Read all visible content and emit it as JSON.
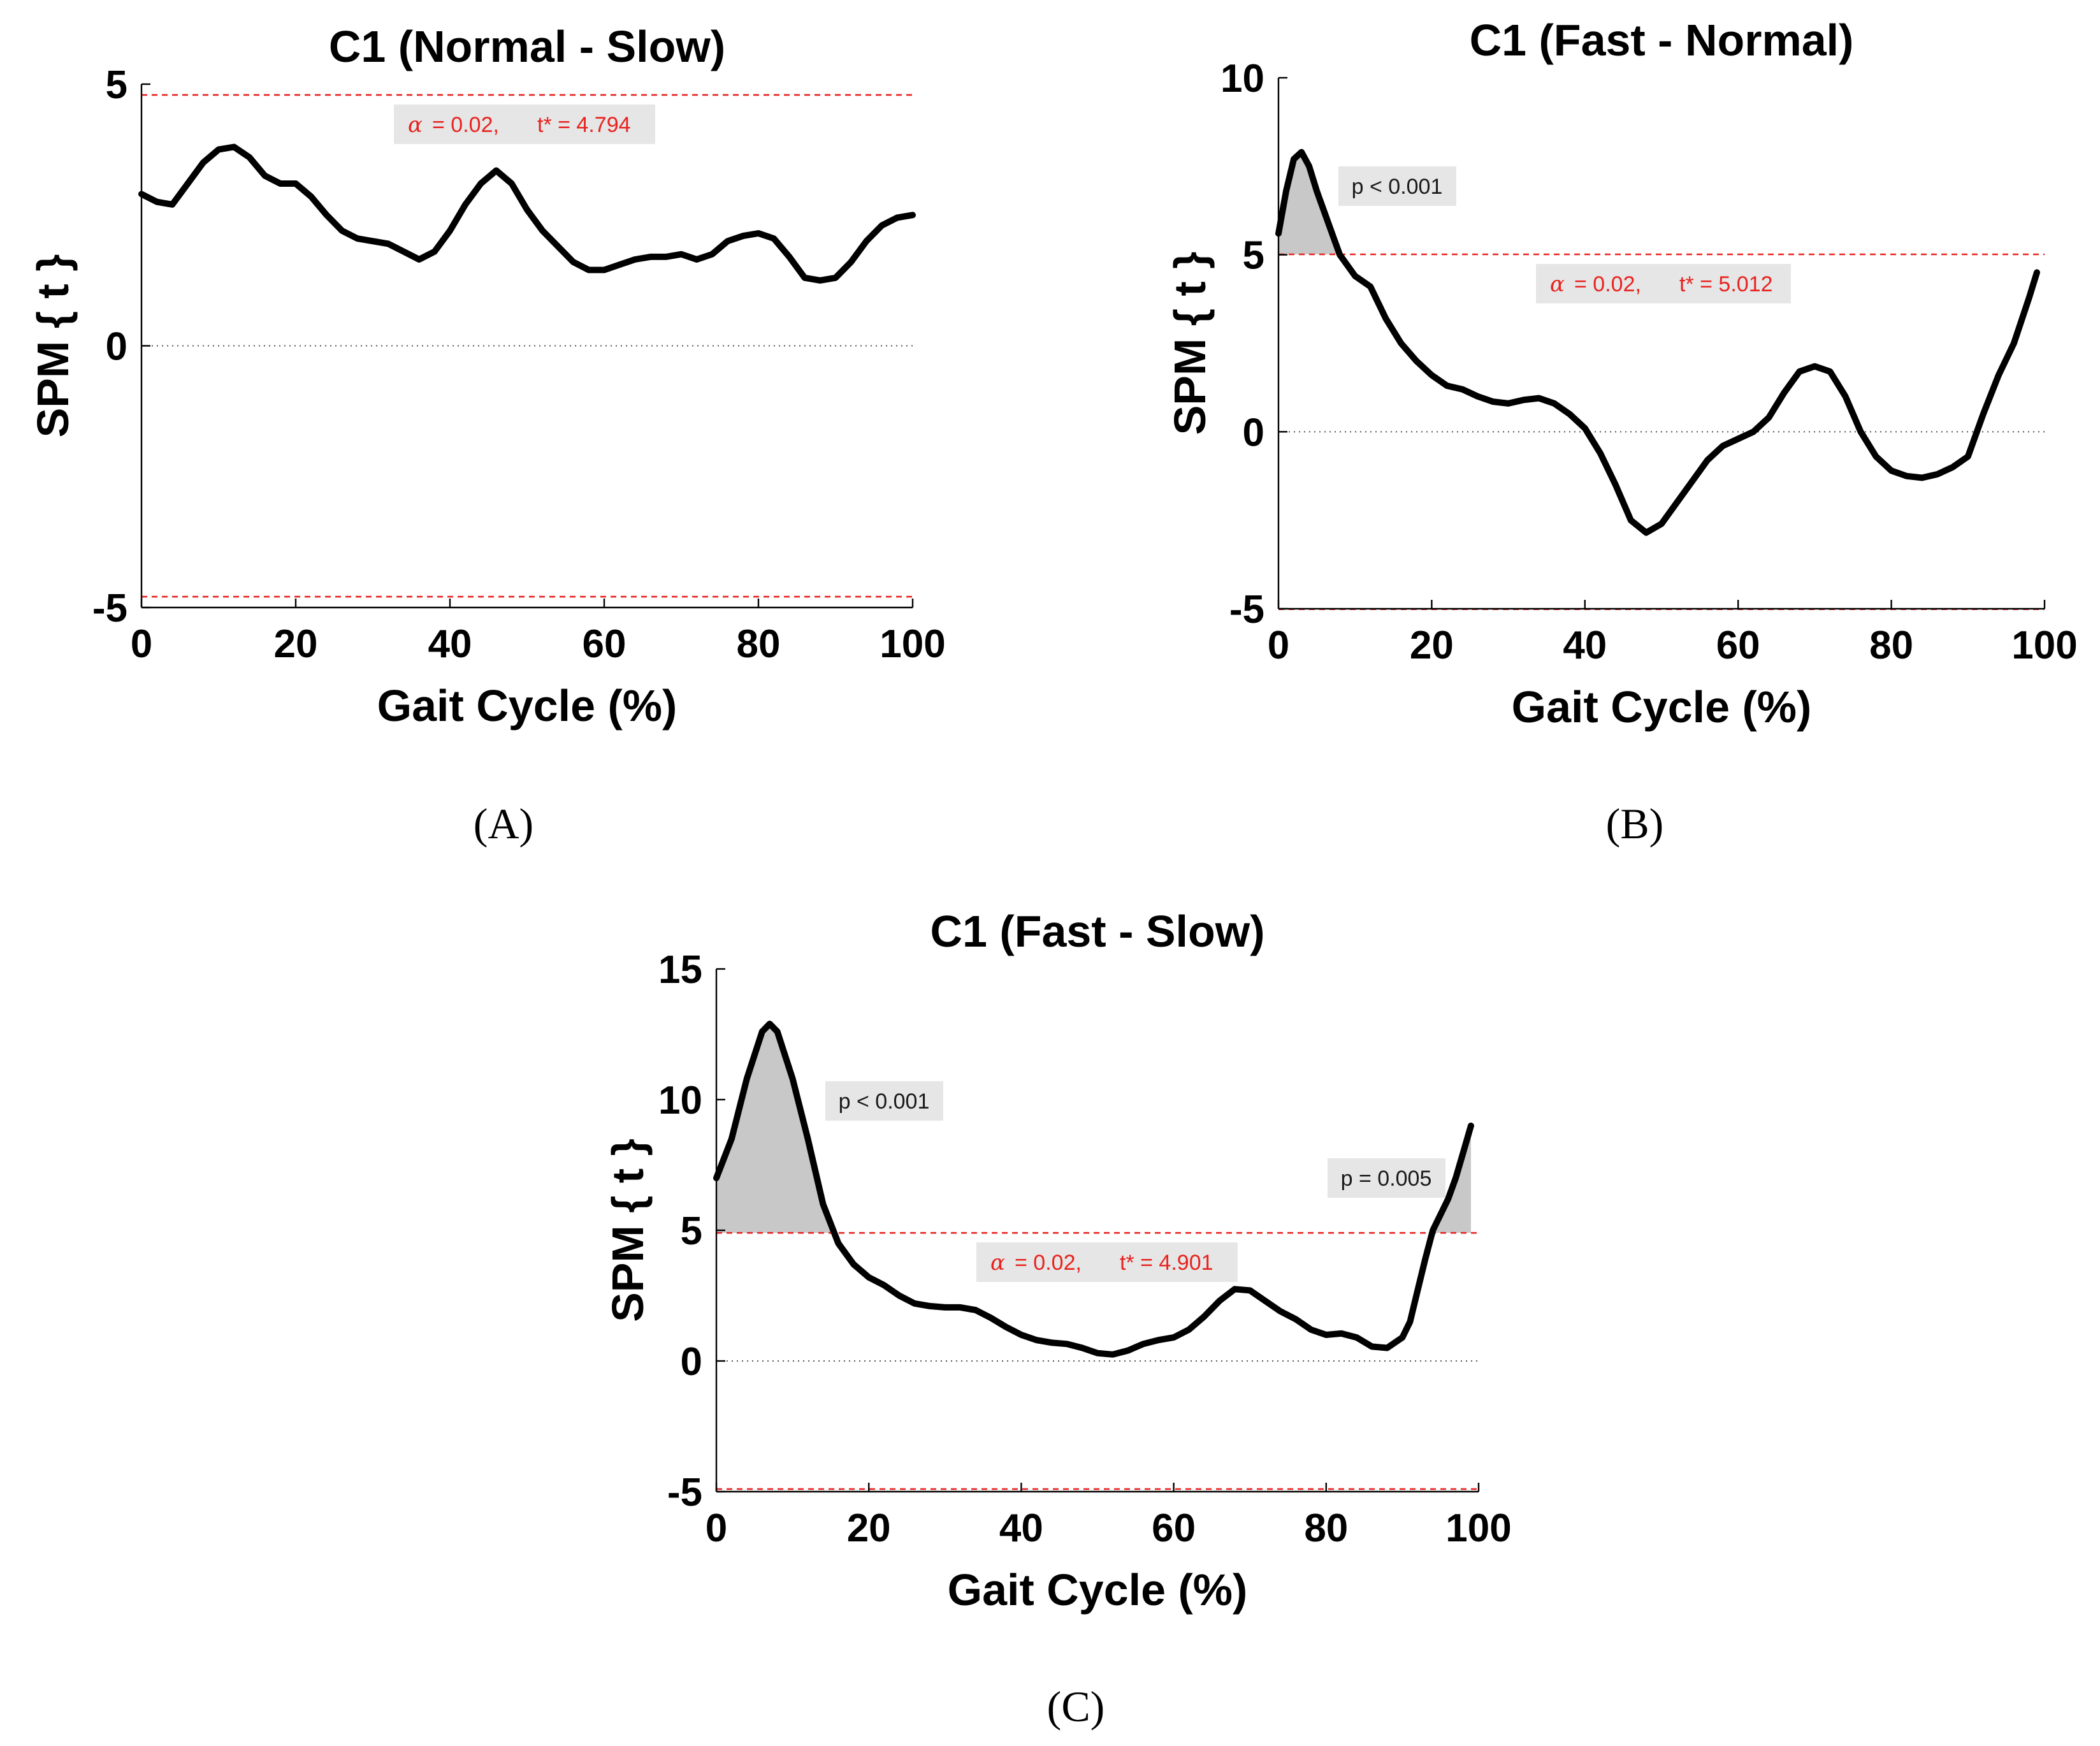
{
  "figure": {
    "panel_labels": [
      "(A)",
      "(B)",
      "(C)"
    ]
  },
  "chart_data": [
    {
      "type": "line",
      "panel": "(A)",
      "title": "C1 (Normal - Slow)",
      "xlabel": "Gait Cycle (%)",
      "ylabel": "SPM { t }",
      "xlim": [
        0,
        100
      ],
      "ylim": [
        -5,
        5
      ],
      "xticks": [
        0,
        20,
        40,
        60,
        80,
        100
      ],
      "yticks": [
        -5,
        0,
        5
      ],
      "threshold": 4.794,
      "threshold_label": "t* = 4.794",
      "alpha_symbol": "α",
      "alpha_label": "= 0.02,",
      "clusters": [],
      "series": [
        {
          "x": [
            0,
            2,
            4,
            6,
            8,
            10,
            12,
            14,
            16,
            18,
            20,
            22,
            24,
            26,
            28,
            30,
            32,
            34,
            36,
            38,
            40,
            42,
            44,
            46,
            48,
            50,
            52,
            54,
            56,
            58,
            60,
            62,
            64,
            66,
            68,
            70,
            72,
            74,
            76,
            78,
            80,
            82,
            84,
            86,
            88,
            90,
            92,
            94,
            96,
            98,
            100
          ],
          "values": [
            2.9,
            2.75,
            2.7,
            3.1,
            3.5,
            3.75,
            3.8,
            3.6,
            3.25,
            3.1,
            3.1,
            2.85,
            2.5,
            2.2,
            2.05,
            2.0,
            1.95,
            1.8,
            1.65,
            1.8,
            2.2,
            2.7,
            3.1,
            3.35,
            3.1,
            2.6,
            2.2,
            1.9,
            1.6,
            1.45,
            1.45,
            1.55,
            1.65,
            1.7,
            1.7,
            1.75,
            1.65,
            1.75,
            2.0,
            2.1,
            2.15,
            2.05,
            1.7,
            1.3,
            1.25,
            1.3,
            1.6,
            2.0,
            2.3,
            2.45,
            2.5
          ]
        }
      ]
    },
    {
      "type": "line",
      "panel": "(B)",
      "title": "C1 (Fast - Normal)",
      "xlabel": "Gait Cycle (%)",
      "ylabel": "SPM { t }",
      "xlim": [
        0,
        100
      ],
      "ylim": [
        -5,
        10
      ],
      "xticks": [
        0,
        20,
        40,
        60,
        80,
        100
      ],
      "yticks": [
        -5,
        0,
        5,
        10
      ],
      "threshold": 5.012,
      "threshold_label": "t* = 5.012",
      "alpha_symbol": "α",
      "alpha_label": "= 0.02,",
      "clusters": [
        {
          "p_label": "p < 0.001"
        }
      ],
      "series": [
        {
          "x": [
            0,
            1,
            2,
            3,
            4,
            5,
            6,
            7,
            8,
            10,
            12,
            14,
            16,
            18,
            20,
            22,
            24,
            26,
            28,
            30,
            32,
            34,
            36,
            38,
            40,
            42,
            44,
            46,
            48,
            50,
            52,
            54,
            56,
            58,
            60,
            62,
            64,
            66,
            68,
            70,
            72,
            74,
            76,
            78,
            80,
            82,
            84,
            86,
            88,
            90,
            92,
            94,
            96,
            98,
            99
          ],
          "values": [
            5.6,
            6.8,
            7.7,
            7.9,
            7.5,
            6.8,
            6.2,
            5.6,
            5.0,
            4.4,
            4.1,
            3.2,
            2.5,
            2.0,
            1.6,
            1.3,
            1.2,
            1.0,
            0.85,
            0.8,
            0.9,
            0.95,
            0.8,
            0.5,
            0.1,
            -0.6,
            -1.5,
            -2.5,
            -2.85,
            -2.6,
            -2.0,
            -1.4,
            -0.8,
            -0.4,
            -0.2,
            0.0,
            0.4,
            1.1,
            1.7,
            1.85,
            1.7,
            1.0,
            0.0,
            -0.7,
            -1.1,
            -1.25,
            -1.3,
            -1.2,
            -1.0,
            -0.7,
            0.5,
            1.6,
            2.5,
            3.8,
            4.5
          ]
        }
      ]
    },
    {
      "type": "line",
      "panel": "(C)",
      "title": "C1 (Fast - Slow)",
      "xlabel": "Gait Cycle (%)",
      "ylabel": "SPM { t }",
      "xlim": [
        0,
        100
      ],
      "ylim": [
        -5,
        15
      ],
      "xticks": [
        0,
        20,
        40,
        60,
        80,
        100
      ],
      "yticks": [
        -5,
        0,
        5,
        10,
        15
      ],
      "threshold": 4.901,
      "threshold_label": "t* = 4.901",
      "alpha_symbol": "α",
      "alpha_label": "= 0.02,",
      "clusters": [
        {
          "p_label": "p < 0.001"
        },
        {
          "p_label": "p = 0.005"
        }
      ],
      "series": [
        {
          "x": [
            0,
            2,
            4,
            6,
            7,
            8,
            10,
            12,
            14,
            16,
            18,
            20,
            22,
            24,
            26,
            28,
            30,
            32,
            34,
            36,
            38,
            40,
            42,
            44,
            46,
            48,
            50,
            52,
            54,
            56,
            58,
            60,
            62,
            64,
            66,
            68,
            70,
            72,
            74,
            76,
            78,
            80,
            82,
            84,
            86,
            88,
            90,
            91,
            92,
            93,
            94,
            95,
            96,
            97,
            98,
            99
          ],
          "values": [
            7.0,
            8.5,
            10.8,
            12.6,
            12.9,
            12.6,
            10.8,
            8.5,
            6.0,
            4.5,
            3.7,
            3.2,
            2.9,
            2.5,
            2.2,
            2.1,
            2.05,
            2.05,
            1.95,
            1.65,
            1.3,
            1.0,
            0.8,
            0.7,
            0.65,
            0.5,
            0.3,
            0.25,
            0.4,
            0.65,
            0.8,
            0.9,
            1.2,
            1.7,
            2.3,
            2.75,
            2.7,
            2.3,
            1.9,
            1.6,
            1.2,
            1.0,
            1.05,
            0.9,
            0.55,
            0.5,
            0.9,
            1.5,
            2.7,
            3.9,
            5.0,
            5.6,
            6.2,
            7.0,
            8.0,
            9.0
          ]
        }
      ]
    }
  ]
}
